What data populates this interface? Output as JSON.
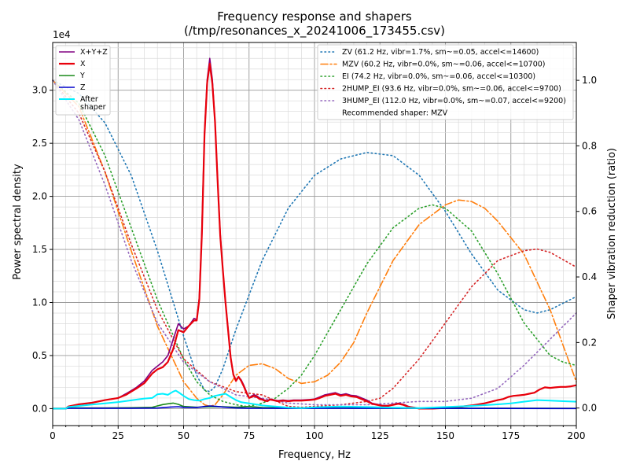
{
  "chart_data": {
    "type": "line",
    "title": "Frequency response and shapers",
    "subtitle": "(/tmp/resonances_x_20241006_173455.csv)",
    "xlabel": "Frequency, Hz",
    "ylabel": "Power spectral density",
    "y2label": "Shaper vibration reduction (ratio)",
    "y_multiplier_label": "1e4",
    "xlim": [
      0,
      200
    ],
    "ylim": [
      -1600,
      34500
    ],
    "y2lim": [
      -0.0536,
      1.1155
    ],
    "x_ticks": [
      "0",
      "25",
      "50",
      "75",
      "100",
      "125",
      "150",
      "175",
      "200"
    ],
    "y_ticks": [
      {
        "value": 0,
        "label": "0.0"
      },
      {
        "value": 5000,
        "label": "0.5"
      },
      {
        "value": 10000,
        "label": "1.0"
      },
      {
        "value": 15000,
        "label": "1.5"
      },
      {
        "value": 20000,
        "label": "2.0"
      },
      {
        "value": 25000,
        "label": "2.5"
      },
      {
        "value": 30000,
        "label": "3.0"
      }
    ],
    "y2_ticks": [
      {
        "value": 0.0,
        "label": "0.0"
      },
      {
        "value": 0.2,
        "label": "0.2"
      },
      {
        "value": 0.4,
        "label": "0.4"
      },
      {
        "value": 0.6,
        "label": "0.6"
      },
      {
        "value": 0.8,
        "label": "0.8"
      },
      {
        "value": 1.0,
        "label": "1.0"
      }
    ],
    "grid": true,
    "legend_left_position": "top-left",
    "legend_right_position": "top-right",
    "psd_series": [
      {
        "name": "X+Y+Z",
        "color": "#800080",
        "width": 1.6,
        "x": [
          0,
          5,
          6,
          10,
          15,
          20,
          25,
          28,
          30,
          32,
          35,
          38,
          40,
          42,
          44,
          46,
          48,
          50,
          52,
          54,
          55,
          56,
          57,
          58,
          59,
          60,
          61,
          62,
          63,
          64,
          65,
          66,
          67,
          68,
          69,
          70,
          71,
          72,
          73,
          74,
          75,
          76,
          77,
          78,
          79,
          80,
          81,
          82,
          83,
          84,
          85,
          86,
          88,
          90,
          92,
          95,
          98,
          100,
          102,
          104,
          106,
          108,
          110,
          112,
          114,
          116,
          118,
          120,
          122,
          124,
          126,
          128,
          130,
          132,
          134,
          136,
          138,
          140,
          145,
          150,
          155,
          160,
          165,
          170,
          172,
          174,
          176,
          178,
          180,
          182,
          184,
          186,
          188,
          190,
          192,
          194,
          196,
          198,
          200
        ],
        "y": [
          0,
          0,
          200,
          400,
          550,
          800,
          1000,
          1400,
          1700,
          2000,
          2600,
          3600,
          4000,
          4400,
          5000,
          6500,
          8000,
          7500,
          7800,
          8500,
          8400,
          10500,
          17000,
          26000,
          31000,
          33000,
          31000,
          27000,
          21500,
          16500,
          13000,
          10000,
          7500,
          4700,
          3200,
          2700,
          3000,
          2700,
          2200,
          1600,
          1000,
          1200,
          1300,
          1200,
          1000,
          900,
          800,
          750,
          900,
          850,
          800,
          750,
          800,
          750,
          800,
          800,
          850,
          900,
          1100,
          1300,
          1400,
          1500,
          1300,
          1400,
          1250,
          1200,
          1000,
          800,
          500,
          400,
          300,
          300,
          400,
          500,
          400,
          200,
          100,
          0,
          0,
          50,
          150,
          300,
          500,
          800,
          900,
          1100,
          1200,
          1250,
          1300,
          1400,
          1500,
          1800,
          2000,
          1950,
          2000,
          2050,
          2050,
          2100,
          2200
        ]
      },
      {
        "name": "X",
        "color": "#e8000b",
        "width": 2.2,
        "x": [
          0,
          5,
          6,
          10,
          15,
          20,
          25,
          28,
          30,
          32,
          35,
          38,
          40,
          42,
          44,
          46,
          48,
          50,
          52,
          54,
          55,
          56,
          57,
          58,
          59,
          60,
          61,
          62,
          63,
          64,
          65,
          66,
          67,
          68,
          69,
          70,
          71,
          72,
          73,
          74,
          75,
          76,
          77,
          78,
          79,
          80,
          81,
          82,
          83,
          84,
          85,
          86,
          88,
          90,
          92,
          95,
          98,
          100,
          102,
          104,
          106,
          108,
          110,
          112,
          114,
          116,
          118,
          120,
          122,
          124,
          126,
          128,
          130,
          132,
          134,
          136,
          138,
          140,
          145,
          150,
          155,
          160,
          165,
          170,
          172,
          174,
          176,
          178,
          180,
          182,
          184,
          186,
          188,
          190,
          192,
          194,
          196,
          198,
          200
        ],
        "y": [
          0,
          0,
          200,
          400,
          550,
          800,
          1000,
          1300,
          1600,
          1900,
          2400,
          3300,
          3700,
          3900,
          4400,
          5600,
          7400,
          7200,
          7800,
          8300,
          8300,
          10300,
          16500,
          25800,
          30700,
          32500,
          30600,
          27000,
          21400,
          16300,
          13000,
          10000,
          7400,
          4800,
          3200,
          2600,
          3000,
          2600,
          2100,
          1500,
          1000,
          1100,
          1200,
          1100,
          900,
          850,
          750,
          700,
          850,
          800,
          750,
          700,
          750,
          700,
          750,
          750,
          800,
          850,
          1000,
          1200,
          1300,
          1400,
          1200,
          1300,
          1150,
          1100,
          900,
          700,
          450,
          350,
          250,
          250,
          350,
          450,
          350,
          150,
          100,
          0,
          0,
          50,
          150,
          300,
          500,
          800,
          900,
          1100,
          1200,
          1250,
          1300,
          1400,
          1500,
          1800,
          2000,
          1950,
          2000,
          2050,
          2050,
          2100,
          2200
        ]
      },
      {
        "name": "Y",
        "color": "#1a8a1a",
        "width": 1.6,
        "x": [
          0,
          5,
          6,
          10,
          20,
          30,
          38,
          40,
          42,
          44,
          46,
          48,
          50,
          55,
          60,
          65,
          70,
          75,
          80,
          90,
          100,
          120,
          150,
          200
        ],
        "y": [
          0,
          0,
          50,
          60,
          70,
          80,
          120,
          250,
          380,
          450,
          520,
          400,
          200,
          130,
          170,
          170,
          130,
          200,
          100,
          80,
          60,
          50,
          40,
          30
        ]
      },
      {
        "name": "Z",
        "color": "#0000cc",
        "width": 1.6,
        "x": [
          0,
          5,
          6,
          10,
          20,
          30,
          40,
          45,
          48,
          50,
          55,
          58,
          60,
          62,
          65,
          70,
          75,
          80,
          90,
          100,
          110,
          120,
          130,
          150,
          200
        ],
        "y": [
          0,
          0,
          30,
          30,
          40,
          40,
          50,
          150,
          180,
          120,
          100,
          200,
          250,
          220,
          150,
          60,
          40,
          30,
          20,
          20,
          30,
          20,
          30,
          20,
          10
        ]
      },
      {
        "name": "After\nshaper",
        "color": "#00f0ff",
        "width": 2.0,
        "x": [
          0,
          5,
          6,
          10,
          15,
          20,
          25,
          30,
          35,
          38,
          40,
          42,
          44,
          46,
          47,
          48,
          50,
          52,
          54,
          56,
          58,
          60,
          62,
          64,
          66,
          68,
          70,
          72,
          75,
          80,
          85,
          90,
          95,
          100,
          110,
          120,
          130,
          140,
          150,
          160,
          170,
          175,
          180,
          185,
          190,
          195,
          200
        ],
        "y": [
          0,
          0,
          150,
          250,
          380,
          500,
          620,
          780,
          950,
          1000,
          1350,
          1400,
          1300,
          1600,
          1700,
          1550,
          1200,
          900,
          800,
          750,
          900,
          1000,
          1200,
          1300,
          1400,
          1100,
          800,
          600,
          500,
          300,
          200,
          100,
          50,
          120,
          200,
          150,
          100,
          50,
          150,
          250,
          400,
          500,
          650,
          800,
          750,
          700,
          650
        ]
      }
    ],
    "shaper_series": [
      {
        "name": "ZV (61.2 Hz, vibr=1.7%, sm~=0.05, accel<=14600)",
        "color": "#1f77b4",
        "dash": "1.5 3.5",
        "x": [
          0,
          10,
          20,
          30,
          40,
          50,
          55,
          58,
          60,
          62,
          65,
          70,
          80,
          90,
          100,
          110,
          120,
          130,
          140,
          150,
          160,
          170,
          180,
          185,
          190,
          200
        ],
        "y": [
          1.0,
          0.96,
          0.87,
          0.71,
          0.48,
          0.22,
          0.1,
          0.055,
          0.05,
          0.065,
          0.12,
          0.24,
          0.45,
          0.61,
          0.71,
          0.76,
          0.78,
          0.77,
          0.71,
          0.6,
          0.47,
          0.36,
          0.3,
          0.29,
          0.3,
          0.34
        ]
      },
      {
        "name": "MZV (60.2 Hz, vibr=0.0%, sm~=0.06, accel<=10700)",
        "color": "#ff7f0e",
        "dash": "9 3 2 3",
        "x": [
          0,
          10,
          20,
          30,
          40,
          50,
          55,
          58,
          60,
          62,
          65,
          70,
          75,
          80,
          85,
          90,
          95,
          100,
          105,
          110,
          115,
          120,
          130,
          140,
          150,
          155,
          160,
          165,
          170,
          180,
          190,
          200
        ],
        "y": [
          1.0,
          0.92,
          0.72,
          0.48,
          0.25,
          0.08,
          0.03,
          0.01,
          0.005,
          0.01,
          0.04,
          0.1,
          0.13,
          0.135,
          0.12,
          0.09,
          0.075,
          0.08,
          0.1,
          0.14,
          0.2,
          0.29,
          0.45,
          0.56,
          0.62,
          0.635,
          0.63,
          0.61,
          0.57,
          0.47,
          0.3,
          0.08
        ]
      },
      {
        "name": "EI (74.2 Hz, vibr=0.0%, sm~=0.06, accel<=10300)",
        "color": "#2ca02c",
        "dash": "1.5 3.5",
        "x": [
          0,
          10,
          20,
          30,
          40,
          50,
          55,
          60,
          65,
          70,
          74,
          78,
          80,
          85,
          90,
          95,
          100,
          110,
          120,
          130,
          140,
          145,
          150,
          160,
          170,
          180,
          190,
          195,
          200
        ],
        "y": [
          1.0,
          0.93,
          0.77,
          0.55,
          0.33,
          0.15,
          0.08,
          0.04,
          0.02,
          0.01,
          0.005,
          0.01,
          0.015,
          0.03,
          0.06,
          0.1,
          0.16,
          0.3,
          0.44,
          0.55,
          0.61,
          0.62,
          0.61,
          0.54,
          0.41,
          0.26,
          0.16,
          0.14,
          0.13
        ]
      },
      {
        "name": "2HUMP_EI (93.6 Hz, vibr=0.0%, sm~=0.06, accel<=9700)",
        "color": "#d62728",
        "dash": "1.5 3.5",
        "x": [
          0,
          10,
          20,
          30,
          40,
          50,
          60,
          70,
          80,
          90,
          95,
          100,
          110,
          120,
          125,
          130,
          140,
          150,
          160,
          170,
          180,
          185,
          190,
          200
        ],
        "y": [
          1.0,
          0.9,
          0.72,
          0.5,
          0.3,
          0.15,
          0.08,
          0.05,
          0.04,
          0.005,
          0.002,
          0.005,
          0.01,
          0.02,
          0.03,
          0.06,
          0.15,
          0.26,
          0.37,
          0.45,
          0.48,
          0.485,
          0.475,
          0.43
        ]
      },
      {
        "name": "3HUMP_EI (112.0 Hz, vibr=0.0%, sm~=0.07, accel<=9200)",
        "color": "#9467bd",
        "dash": "1.5 3.5",
        "x": [
          0,
          10,
          20,
          30,
          40,
          50,
          60,
          70,
          80,
          90,
          100,
          110,
          120,
          130,
          140,
          150,
          160,
          170,
          180,
          190,
          200
        ],
        "y": [
          1.0,
          0.88,
          0.68,
          0.45,
          0.26,
          0.14,
          0.08,
          0.04,
          0.03,
          0.015,
          0.01,
          0.01,
          0.01,
          0.015,
          0.02,
          0.02,
          0.03,
          0.06,
          0.13,
          0.21,
          0.29
        ]
      }
    ],
    "recommended_text": "Recommended shaper: MZV"
  }
}
